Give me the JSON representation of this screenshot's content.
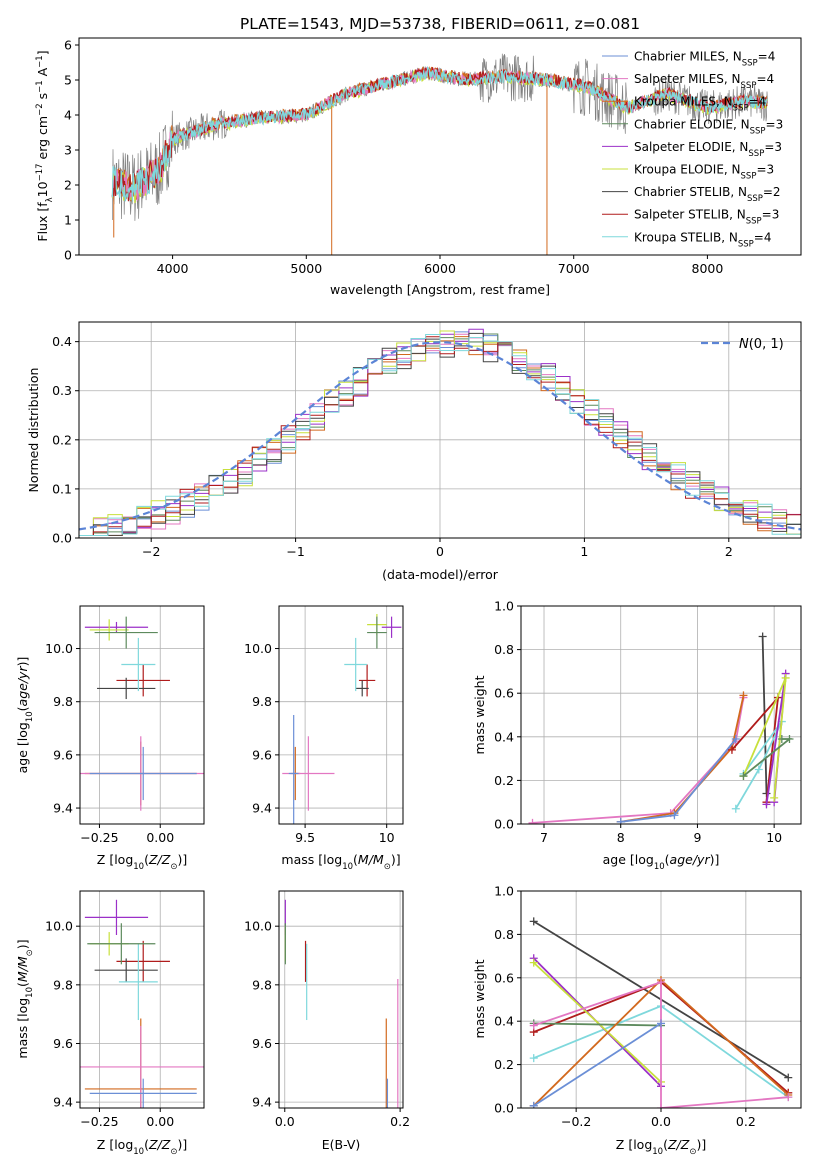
{
  "figure_title": "PLATE=1543, MJD=53738, FIBERID=0611, z=0.081",
  "colors": {
    "miles_chabrier": "#6b8fd6",
    "miles_salpeter": "#e377c2",
    "miles_kroupa": "#d2691e",
    "elodie_chabrier": "#5d8a5d",
    "elodie_salpeter": "#9b30c8",
    "elodie_kroupa": "#c8e03c",
    "stelib_chabrier": "#444444",
    "stelib_salpeter": "#b01c1c",
    "stelib_kroupa": "#7fd8dc",
    "data": "#808080",
    "gaussian": "#5b84d6"
  },
  "legend_spectrum": [
    "Chabrier MILES, N_SSP=4",
    "Salpeter MILES, N_SSP=4",
    "Kroupa MILES, N_SSP=4",
    "Chabrier ELODIE, N_SSP=3",
    "Salpeter ELODIE, N_SSP=3",
    "Kroupa ELODIE, N_SSP=3",
    "Chabrier STELIB, N_SSP=2",
    "Salpeter STELIB, N_SSP=3",
    "Kroupa STELIB, N_SSP=4"
  ],
  "legend_hist": "N(0, 1)",
  "chart_data": [
    {
      "type": "line",
      "panel": "spectrum",
      "xlabel": "wavelength [Angstrom, rest frame]",
      "ylabel": "Flux [f_λ10^-17 erg cm^-2 s^-1 A^-1]",
      "xlim": [
        3300,
        8700
      ],
      "ylim": [
        0,
        6.2
      ],
      "xticks": [
        4000,
        5000,
        6000,
        7000,
        8000
      ],
      "yticks": [
        0,
        1,
        2,
        3,
        4,
        5,
        6
      ],
      "x_range_data": [
        3550,
        8450
      ],
      "continuum_knots": [
        [
          3550,
          2.1
        ],
        [
          3700,
          1.9
        ],
        [
          3900,
          2.4
        ],
        [
          4000,
          3.3
        ],
        [
          4300,
          3.7
        ],
        [
          4600,
          3.9
        ],
        [
          5000,
          4.0
        ],
        [
          5300,
          4.6
        ],
        [
          5600,
          4.9
        ],
        [
          5900,
          5.2
        ],
        [
          6200,
          5.0
        ],
        [
          6500,
          5.1
        ],
        [
          6800,
          5.0
        ],
        [
          7100,
          4.8
        ],
        [
          7400,
          4.2
        ],
        [
          7700,
          4.6
        ],
        [
          8000,
          4.2
        ],
        [
          8300,
          4.4
        ],
        [
          8450,
          4.3
        ]
      ],
      "grid": false
    },
    {
      "type": "bar",
      "panel": "residual_histogram",
      "xlabel": "(data-model)/error",
      "ylabel": "Normed distribution",
      "xlim": [
        -2.5,
        2.5
      ],
      "ylim": [
        0,
        0.44
      ],
      "xticks": [
        -2,
        -1,
        0,
        1,
        2
      ],
      "yticks": [
        0.0,
        0.1,
        0.2,
        0.3,
        0.4
      ],
      "bin_width": 0.1,
      "grid": true
    },
    {
      "type": "scatter",
      "panel": "age_vs_Z",
      "xlabel": "Z [log10(Z/Z⊙)]",
      "ylabel": "age [log10(age/yr)]",
      "xlim": [
        -0.33,
        0.18
      ],
      "ylim": [
        9.34,
        10.16
      ],
      "xticks": [
        -0.25,
        0.0
      ],
      "xticklabels": [
        "−0.25",
        "0.00"
      ],
      "yticks": [
        9.4,
        9.6,
        9.8,
        10.0
      ],
      "crosses": [
        {
          "model": "stelib_salpeter",
          "x": -0.07,
          "y": 9.88,
          "xerr": 0.11,
          "yerr": 0.06
        },
        {
          "model": "stelib_chabrier",
          "x": -0.14,
          "y": 9.85,
          "xerr": 0.12,
          "yerr": 0.04
        },
        {
          "model": "stelib_kroupa",
          "x": -0.09,
          "y": 9.94,
          "xerr": 0.07,
          "yerr": 0.1
        },
        {
          "model": "miles_kroupa",
          "x": -0.08,
          "y": 9.53,
          "xerr": 0.23,
          "yerr": 0.12
        },
        {
          "model": "miles_salpeter",
          "x": -0.08,
          "y": 9.53,
          "xerr": 0.27,
          "yerr": 0.14
        },
        {
          "model": "elodie_salpeter",
          "x": -0.18,
          "y": 10.08,
          "xerr": 0.13,
          "yerr": 0.02
        },
        {
          "model": "elodie_kroupa",
          "x": -0.21,
          "y": 10.07,
          "xerr": 0.08,
          "yerr": 0.04
        },
        {
          "model": "elodie_chabrier",
          "x": -0.14,
          "y": 10.06,
          "xerr": 0.13,
          "yerr": 0.06
        },
        {
          "model": "miles_chabrier",
          "x": -0.07,
          "y": 9.53,
          "xerr": 0.22,
          "yerr": 0.1
        }
      ],
      "grid": true
    },
    {
      "type": "scatter",
      "panel": "age_vs_mass",
      "xlabel": "mass [log10(M/M⊙)]",
      "ylabel": "",
      "xlim": [
        9.34,
        10.1
      ],
      "ylim": [
        9.34,
        10.16
      ],
      "xticks": [
        9.5,
        10.0
      ],
      "yticks": [
        9.4,
        9.6,
        9.8,
        10.0
      ],
      "crosses": [
        {
          "model": "stelib_salpeter",
          "x": 9.88,
          "y": 9.88,
          "xerr": 0.05,
          "yerr": 0.06
        },
        {
          "model": "stelib_chabrier",
          "x": 9.85,
          "y": 9.85,
          "xerr": 0.04,
          "yerr": 0.03
        },
        {
          "model": "stelib_kroupa",
          "x": 9.81,
          "y": 9.94,
          "xerr": 0.07,
          "yerr": 0.1
        },
        {
          "model": "miles_kroupa",
          "x": 9.44,
          "y": 9.53,
          "xerr": 0.03,
          "yerr": 0.1
        },
        {
          "model": "miles_salpeter",
          "x": 9.52,
          "y": 9.53,
          "xerr": 0.16,
          "yerr": 0.14
        },
        {
          "model": "elodie_salpeter",
          "x": 10.03,
          "y": 10.08,
          "xerr": 0.06,
          "yerr": 0.04
        },
        {
          "model": "elodie_kroupa",
          "x": 9.94,
          "y": 10.09,
          "xerr": 0.06,
          "yerr": 0.04
        },
        {
          "model": "elodie_chabrier",
          "x": 9.94,
          "y": 10.06,
          "xerr": 0.06,
          "yerr": 0.06
        },
        {
          "model": "miles_chabrier",
          "x": 9.43,
          "y": 9.53,
          "xerr": 0.03,
          "yerr": 0.22
        }
      ],
      "grid": true
    },
    {
      "type": "line",
      "panel": "mass_weight_vs_age",
      "xlabel": "age [log10(age/yr)]",
      "ylabel": "mass weight",
      "xlim": [
        6.7,
        10.35
      ],
      "ylim": [
        0,
        1.0
      ],
      "xticks": [
        7,
        8,
        9,
        10
      ],
      "yticks": [
        0.0,
        0.2,
        0.4,
        0.6,
        0.8,
        1.0
      ],
      "series": [
        {
          "model": "miles_salpeter",
          "x": [
            6.85,
            8.65,
            9.5,
            9.6
          ],
          "y": [
            0.005,
            0.05,
            0.38,
            0.58
          ]
        },
        {
          "model": "miles_kroupa",
          "x": [
            8.0,
            8.7,
            9.45,
            9.6
          ],
          "y": [
            0.01,
            0.05,
            0.35,
            0.59
          ]
        },
        {
          "model": "miles_chabrier",
          "x": [
            8.0,
            8.7,
            9.5
          ],
          "y": [
            0.01,
            0.04,
            0.39
          ]
        },
        {
          "model": "stelib_chabrier",
          "x": [
            9.85,
            9.9
          ],
          "y": [
            0.86,
            0.14
          ]
        },
        {
          "model": "stelib_salpeter",
          "x": [
            9.9,
            10.05,
            9.45
          ],
          "y": [
            0.1,
            0.58,
            0.34
          ]
        },
        {
          "model": "stelib_kroupa",
          "x": [
            9.5,
            9.8,
            10.1,
            9.6
          ],
          "y": [
            0.07,
            0.25,
            0.47,
            0.23
          ]
        },
        {
          "model": "elodie_salpeter",
          "x": [
            9.9,
            10.15,
            10.0
          ],
          "y": [
            0.09,
            0.69,
            0.1
          ]
        },
        {
          "model": "elodie_kroupa",
          "x": [
            10.0,
            10.15,
            9.6
          ],
          "y": [
            0.12,
            0.67,
            0.22
          ]
        },
        {
          "model": "elodie_chabrier",
          "x": [
            9.6,
            10.2,
            10.1
          ],
          "y": [
            0.22,
            0.39,
            0.39
          ]
        }
      ],
      "grid": true
    },
    {
      "type": "scatter",
      "panel": "mass_vs_Z",
      "xlabel": "Z [log10(Z/Z⊙)]",
      "ylabel": "mass [log10(M/M⊙)]",
      "xlim": [
        -0.33,
        0.18
      ],
      "ylim": [
        9.38,
        10.12
      ],
      "xticks": [
        -0.25,
        0.0
      ],
      "xticklabels": [
        "−0.25",
        "0.00"
      ],
      "yticks": [
        9.4,
        9.6,
        9.8,
        10.0
      ],
      "crosses": [
        {
          "model": "stelib_salpeter",
          "x": -0.07,
          "y": 9.88,
          "xerr": 0.11,
          "yerr": 0.07
        },
        {
          "model": "stelib_chabrier",
          "x": -0.14,
          "y": 9.85,
          "xerr": 0.13,
          "yerr": 0.04
        },
        {
          "model": "stelib_kroupa",
          "x": -0.09,
          "y": 9.81,
          "xerr": 0.08,
          "yerr": 0.13
        },
        {
          "model": "miles_kroupa",
          "x": -0.08,
          "y": 9.445,
          "xerr": 0.23,
          "yerr": 0.24
        },
        {
          "model": "miles_salpeter",
          "x": -0.08,
          "y": 9.52,
          "xerr": 0.27,
          "yerr": 0.14
        },
        {
          "model": "elodie_salpeter",
          "x": -0.18,
          "y": 10.03,
          "xerr": 0.13,
          "yerr": 0.06
        },
        {
          "model": "elodie_kroupa",
          "x": -0.21,
          "y": 9.94,
          "xerr": 0.08,
          "yerr": 0.04
        },
        {
          "model": "elodie_chabrier",
          "x": -0.16,
          "y": 9.94,
          "xerr": 0.14,
          "yerr": 0.07
        },
        {
          "model": "miles_chabrier",
          "x": -0.07,
          "y": 9.43,
          "xerr": 0.22,
          "yerr": 0.05
        }
      ],
      "grid": true
    },
    {
      "type": "scatter",
      "panel": "mass_vs_EBV",
      "xlabel": "E(B-V)",
      "ylabel": "",
      "xlim": [
        -0.01,
        0.205
      ],
      "ylim": [
        9.38,
        10.12
      ],
      "xticks": [
        0.0,
        0.2
      ],
      "yticks": [
        9.4,
        9.6,
        9.8,
        10.0
      ],
      "crosses": [
        {
          "model": "elodie_salpeter",
          "x": 0.001,
          "y": 10.03,
          "xerr": 0.0,
          "yerr": 0.06
        },
        {
          "model": "elodie_kroupa",
          "x": 0.001,
          "y": 9.94,
          "xerr": 0.0,
          "yerr": 0.06
        },
        {
          "model": "elodie_chabrier",
          "x": 0.001,
          "y": 9.94,
          "xerr": 0.0,
          "yerr": 0.07
        },
        {
          "model": "stelib_salpeter",
          "x": 0.036,
          "y": 9.88,
          "xerr": 0.0,
          "yerr": 0.07
        },
        {
          "model": "stelib_kroupa",
          "x": 0.038,
          "y": 9.81,
          "xerr": 0.0,
          "yerr": 0.13
        },
        {
          "model": "miles_kroupa",
          "x": 0.176,
          "y": 9.445,
          "xerr": 0.0,
          "yerr": 0.24
        },
        {
          "model": "miles_chabrier",
          "x": 0.178,
          "y": 9.43,
          "xerr": 0.0,
          "yerr": 0.05
        },
        {
          "model": "miles_salpeter",
          "x": 0.196,
          "y": 9.52,
          "xerr": 0.0,
          "yerr": 0.3
        }
      ],
      "grid": true
    },
    {
      "type": "line",
      "panel": "mass_weight_vs_Z",
      "xlabel": "Z [log10(Z/Z⊙)]",
      "ylabel": "mass weight",
      "xlim": [
        -0.33,
        0.33
      ],
      "ylim": [
        0,
        1.0
      ],
      "xticks": [
        -0.2,
        0.0,
        0.2
      ],
      "xticklabels": [
        "−0.2",
        "0.0",
        "0.2"
      ],
      "yticks": [
        0.0,
        0.2,
        0.4,
        0.6,
        0.8,
        1.0
      ],
      "series": [
        {
          "model": "stelib_chabrier",
          "x": [
            -0.3,
            0.3
          ],
          "y": [
            0.86,
            0.14
          ]
        },
        {
          "model": "stelib_salpeter",
          "x": [
            -0.3,
            0.0,
            0.3
          ],
          "y": [
            0.35,
            0.58,
            0.07
          ]
        },
        {
          "model": "stelib_kroupa",
          "x": [
            -0.3,
            0.0,
            0.3
          ],
          "y": [
            0.23,
            0.47,
            0.05
          ]
        },
        {
          "model": "elodie_salpeter",
          "x": [
            -0.3,
            0.0
          ],
          "y": [
            0.69,
            0.1
          ]
        },
        {
          "model": "elodie_kroupa",
          "x": [
            -0.3,
            0.0
          ],
          "y": [
            0.67,
            0.12
          ]
        },
        {
          "model": "elodie_chabrier",
          "x": [
            -0.3,
            0.0
          ],
          "y": [
            0.39,
            0.38
          ]
        },
        {
          "model": "miles_kroupa",
          "x": [
            -0.3,
            0.0,
            0.3
          ],
          "y": [
            0.01,
            0.59,
            0.06
          ]
        },
        {
          "model": "miles_salpeter",
          "x": [
            -0.3,
            0.0,
            0.0,
            0.3
          ],
          "y": [
            0.38,
            0.58,
            0.0,
            0.05
          ]
        },
        {
          "model": "miles_chabrier",
          "x": [
            -0.3,
            0.0
          ],
          "y": [
            0.01,
            0.39
          ]
        }
      ],
      "grid": true
    }
  ]
}
